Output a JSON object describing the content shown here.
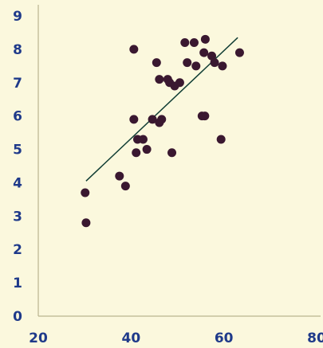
{
  "chart_data": {
    "type": "scatter",
    "title": "",
    "xlabel": "",
    "ylabel": "",
    "xlim": [
      20,
      80
    ],
    "ylim": [
      0,
      9
    ],
    "x_ticks": [
      "20",
      "40",
      "60",
      "80"
    ],
    "y_ticks": [
      "0",
      "1",
      "2",
      "3",
      "4",
      "5",
      "6",
      "7",
      "8",
      "9"
    ],
    "grid": false,
    "legend": "none",
    "colors": {
      "background": "#fbf8dd",
      "points": "#3a1830",
      "trend_line": "#103d34",
      "tick_labels": "#1f3a8a",
      "axes": "#b9b48f"
    },
    "points": [
      {
        "x": 30.3,
        "y": 2.8
      },
      {
        "x": 30.1,
        "y": 3.7
      },
      {
        "x": 37.5,
        "y": 4.2
      },
      {
        "x": 38.8,
        "y": 3.9
      },
      {
        "x": 40.6,
        "y": 8.0
      },
      {
        "x": 40.6,
        "y": 5.9
      },
      {
        "x": 41.1,
        "y": 4.9
      },
      {
        "x": 41.4,
        "y": 5.3
      },
      {
        "x": 42.6,
        "y": 5.3
      },
      {
        "x": 43.4,
        "y": 5.0
      },
      {
        "x": 44.6,
        "y": 5.9
      },
      {
        "x": 45.5,
        "y": 7.6
      },
      {
        "x": 46.1,
        "y": 7.1
      },
      {
        "x": 46.1,
        "y": 5.8
      },
      {
        "x": 46.6,
        "y": 5.9
      },
      {
        "x": 47.9,
        "y": 7.1
      },
      {
        "x": 48.3,
        "y": 7.0
      },
      {
        "x": 48.8,
        "y": 4.9
      },
      {
        "x": 49.4,
        "y": 6.9
      },
      {
        "x": 50.5,
        "y": 7.0
      },
      {
        "x": 51.6,
        "y": 8.2
      },
      {
        "x": 52.1,
        "y": 7.6
      },
      {
        "x": 53.6,
        "y": 8.2
      },
      {
        "x": 54.0,
        "y": 7.5
      },
      {
        "x": 55.3,
        "y": 6.0
      },
      {
        "x": 55.9,
        "y": 6.0
      },
      {
        "x": 55.7,
        "y": 7.9
      },
      {
        "x": 56.0,
        "y": 8.3
      },
      {
        "x": 57.4,
        "y": 7.8
      },
      {
        "x": 58.0,
        "y": 7.6
      },
      {
        "x": 59.4,
        "y": 5.3
      },
      {
        "x": 59.7,
        "y": 7.5
      },
      {
        "x": 63.4,
        "y": 7.9
      }
    ],
    "trend_line": {
      "from": {
        "x": 30.3,
        "y": 4.05
      },
      "to": {
        "x": 63.0,
        "y": 8.35
      }
    }
  }
}
